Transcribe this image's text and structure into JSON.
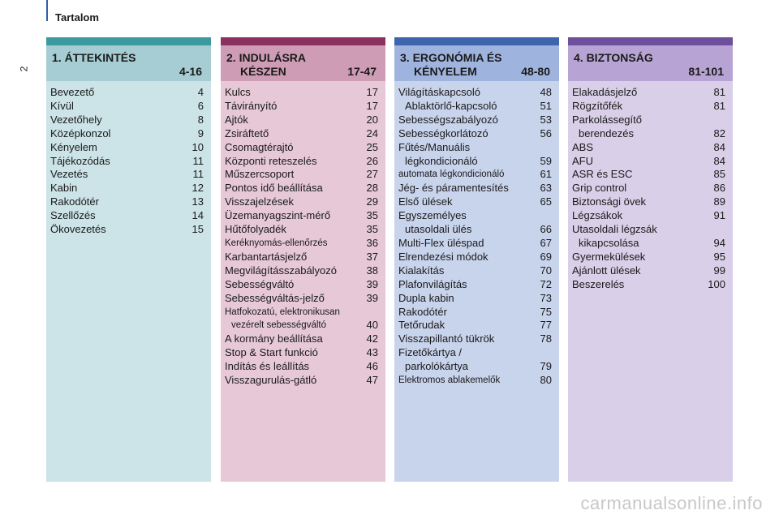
{
  "header": {
    "title": "Tartalom",
    "page_number": "2"
  },
  "columns": [
    {
      "title_line1": "1. ÁTTEKINTÉS",
      "title_line2": "",
      "pages": "4-16",
      "items": [
        {
          "label": "Bevezető",
          "page": "4"
        },
        {
          "label": "Kívül",
          "page": "6"
        },
        {
          "label": "Vezetőhely",
          "page": "8"
        },
        {
          "label": "Középkonzol",
          "page": "9"
        },
        {
          "label": "Kényelem",
          "page": "10"
        },
        {
          "label": "Tájékozódás",
          "page": "11"
        },
        {
          "label": "Vezetés",
          "page": "11"
        },
        {
          "label": "Kabin",
          "page": "12"
        },
        {
          "label": "Rakodótér",
          "page": "13"
        },
        {
          "label": "Szellőzés",
          "page": "14"
        },
        {
          "label": "Ökovezetés",
          "page": "15"
        }
      ]
    },
    {
      "title_line1": "2. INDULÁSRA",
      "title_line2": "KÉSZEN",
      "pages": "17-47",
      "items": [
        {
          "label": "Kulcs",
          "page": "17"
        },
        {
          "label": "Távirányító",
          "page": "17"
        },
        {
          "label": "Ajtók",
          "page": "20"
        },
        {
          "label": "Zsiráftető",
          "page": "24"
        },
        {
          "label": "Csomagtérajtó",
          "page": "25"
        },
        {
          "label": "Központi reteszelés",
          "page": "26"
        },
        {
          "label": "Műszercsoport",
          "page": "27"
        },
        {
          "label": "Pontos idő beállítása",
          "page": "28"
        },
        {
          "label": "Visszajelzések",
          "page": "29"
        },
        {
          "label": "Üzemanyagszint-mérő",
          "page": "35"
        },
        {
          "label": "Hűtőfolyadék",
          "page": "35"
        },
        {
          "label": "Keréknyomás-ellenőrzés",
          "page": "36"
        },
        {
          "label": "Karbantartásjelző",
          "page": "37"
        },
        {
          "label": "Megvilágításszabályozó",
          "page": "38"
        },
        {
          "label": "Sebességváltó",
          "page": "39"
        },
        {
          "label": "Sebességváltás-jelző",
          "page": "39"
        },
        {
          "label": "Hatfokozatú, elektronikusan",
          "page": ""
        },
        {
          "label": "vezérelt sebességváltó",
          "page": "40"
        },
        {
          "label": "A kormány beállítása",
          "page": "42"
        },
        {
          "label": "Stop & Start funkció",
          "page": "43"
        },
        {
          "label": "Indítás és leállítás",
          "page": "46"
        },
        {
          "label": "Visszagurulás-gátló",
          "page": "47"
        }
      ]
    },
    {
      "title_line1": "3. ERGONÓMIA ÉS",
      "title_line2": "KÉNYELEM",
      "pages": "48-80",
      "items": [
        {
          "label": "Világításkapcsoló",
          "page": "48"
        },
        {
          "label": "Ablaktörlő-kapcsoló",
          "page": "51"
        },
        {
          "label": "Sebességszabályozó",
          "page": "53"
        },
        {
          "label": "Sebességkorlátozó",
          "page": "56"
        },
        {
          "label": "Fűtés/Manuális",
          "page": ""
        },
        {
          "label": "légkondicionáló",
          "page": "59"
        },
        {
          "label": "automata légkondicionáló",
          "page": "61"
        },
        {
          "label": "Jég- és páramentesítés",
          "page": "63"
        },
        {
          "label": "Első ülések",
          "page": "65"
        },
        {
          "label": "Egyszemélyes",
          "page": ""
        },
        {
          "label": "utasoldali ülés",
          "page": "66"
        },
        {
          "label": "Multi-Flex üléspad",
          "page": "67"
        },
        {
          "label": "Elrendezési módok",
          "page": "69"
        },
        {
          "label": "Kialakítás",
          "page": "70"
        },
        {
          "label": "Plafonvilágítás",
          "page": "72"
        },
        {
          "label": "Dupla kabin",
          "page": "73"
        },
        {
          "label": "Rakodótér",
          "page": "75"
        },
        {
          "label": "Tetőrudak",
          "page": "77"
        },
        {
          "label": "Visszapillantó tükrök",
          "page": "78"
        },
        {
          "label": "Fizetőkártya /",
          "page": ""
        },
        {
          "label": "parkolókártya",
          "page": "79"
        },
        {
          "label": "Elektromos ablakemelők",
          "page": "80"
        }
      ]
    },
    {
      "title_line1": "4. BIZTONSÁG",
      "title_line2": "",
      "pages": "81-101",
      "items": [
        {
          "label": "Elakadásjelző",
          "page": "81"
        },
        {
          "label": "Rögzítőfék",
          "page": "81"
        },
        {
          "label": "Parkolássegítő",
          "page": ""
        },
        {
          "label": "berendezés",
          "page": "82"
        },
        {
          "label": "ABS",
          "page": "84"
        },
        {
          "label": "AFU",
          "page": "84"
        },
        {
          "label": "ASR és ESC",
          "page": "85"
        },
        {
          "label": "Grip control",
          "page": "86"
        },
        {
          "label": "Biztonsági övek",
          "page": "89"
        },
        {
          "label": "Légzsákok",
          "page": "91"
        },
        {
          "label": "Utasoldali légzsák",
          "page": ""
        },
        {
          "label": "kikapcsolása",
          "page": "94"
        },
        {
          "label": "Gyermekülések",
          "page": "95"
        },
        {
          "label": "Ajánlott ülések",
          "page": "99"
        },
        {
          "label": "Beszerelés",
          "page": "100"
        }
      ]
    }
  ],
  "watermark": "carmanualsonline.info"
}
